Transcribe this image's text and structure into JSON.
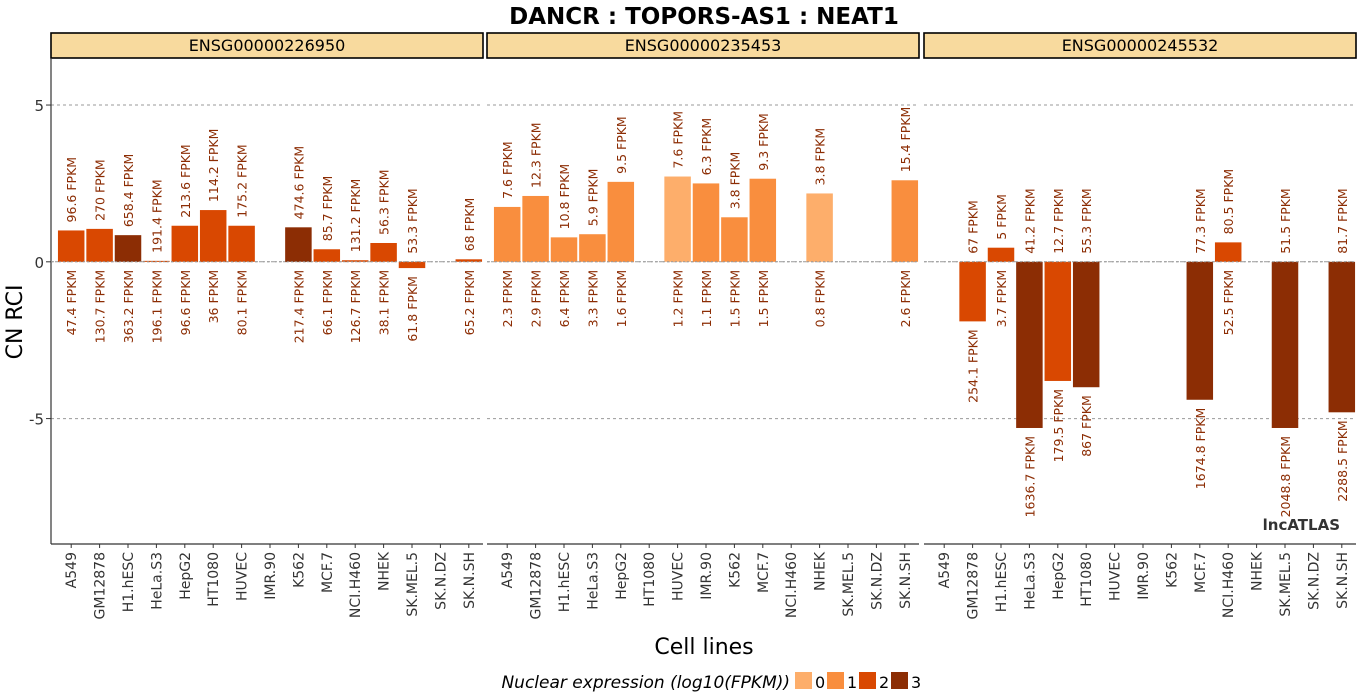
{
  "chart_data": {
    "type": "bar",
    "title": "DANCR : TOPORS-AS1 : NEAT1",
    "xlabel": "Cell lines",
    "ylabel": "CN RCI",
    "ylim": [
      -9,
      6.5
    ],
    "yticks": [
      5,
      0,
      -5
    ],
    "ytick_labels": [
      "5",
      "0",
      "-5"
    ],
    "grid": true,
    "categories": [
      "A549",
      "GM12878",
      "H1.hESC",
      "HeLa.S3",
      "HepG2",
      "HT1080",
      "HUVEC",
      "IMR.90",
      "K562",
      "MCF.7",
      "NCI.H460",
      "NHEK",
      "SK.MEL.5",
      "SK.N.DZ",
      "SK.N.SH"
    ],
    "panels": [
      {
        "name": "ENSG00000226950",
        "values": [
          1.0,
          1.05,
          0.85,
          0.03,
          1.15,
          1.65,
          1.15,
          null,
          1.1,
          0.4,
          0.05,
          0.6,
          -0.2,
          null,
          0.08
        ],
        "color_levels": [
          2,
          2,
          3,
          2,
          2,
          2,
          2,
          null,
          3,
          2,
          2,
          2,
          2,
          null,
          2
        ],
        "cyto_labels": [
          "96.6 FPKM",
          "270 FPKM",
          "658.4 FPKM",
          "191.4 FPKM",
          "213.6 FPKM",
          "114.2 FPKM",
          "175.2 FPKM",
          "",
          "474.6 FPKM",
          "85.7 FPKM",
          "131.2 FPKM",
          "56.3 FPKM",
          "53.3 FPKM",
          "",
          "68 FPKM"
        ],
        "nuc_labels": [
          "47.4 FPKM",
          "130.7 FPKM",
          "363.2 FPKM",
          "196.1 FPKM",
          "96.6 FPKM",
          "36 FPKM",
          "80.1 FPKM",
          "",
          "217.4 FPKM",
          "66.1 FPKM",
          "126.7 FPKM",
          "38.1 FPKM",
          "61.8 FPKM",
          "",
          "65.2 FPKM"
        ]
      },
      {
        "name": "ENSG00000235453",
        "values": [
          1.75,
          2.1,
          0.78,
          0.88,
          2.55,
          null,
          2.72,
          2.5,
          1.42,
          2.65,
          null,
          2.18,
          null,
          null,
          2.6
        ],
        "color_levels": [
          1,
          1,
          1,
          1,
          1,
          null,
          0,
          1,
          1,
          1,
          null,
          0,
          null,
          null,
          1
        ],
        "cyto_labels": [
          "7.6 FPKM",
          "12.3 FPKM",
          "10.8 FPKM",
          "5.9 FPKM",
          "9.5 FPKM",
          "",
          "7.6 FPKM",
          "6.3 FPKM",
          "3.8 FPKM",
          "9.3 FPKM",
          "",
          "3.8 FPKM",
          "",
          "",
          "15.4 FPKM"
        ],
        "nuc_labels": [
          "2.3 FPKM",
          "2.9 FPKM",
          "6.4 FPKM",
          "3.3 FPKM",
          "1.6 FPKM",
          "",
          "1.2 FPKM",
          "1.1 FPKM",
          "1.5 FPKM",
          "1.5 FPKM",
          "",
          "0.8 FPKM",
          "",
          "",
          "2.6 FPKM"
        ]
      },
      {
        "name": "ENSG00000245532",
        "values": [
          null,
          -1.9,
          0.45,
          -5.3,
          -3.8,
          -4.0,
          null,
          null,
          null,
          -4.4,
          0.62,
          null,
          -5.3,
          null,
          -4.8
        ],
        "color_levels": [
          null,
          2,
          2,
          3,
          2,
          3,
          null,
          null,
          null,
          3,
          2,
          null,
          3,
          null,
          3
        ],
        "cyto_labels": [
          "",
          "67 FPKM",
          "5 FPKM",
          "41.2 FPKM",
          "12.7 FPKM",
          "55.3 FPKM",
          "",
          "",
          "",
          "77.3 FPKM",
          "80.5 FPKM",
          "",
          "51.5 FPKM",
          "",
          "81.7 FPKM"
        ],
        "nuc_labels": [
          "",
          "254.1 FPKM",
          "3.7 FPKM",
          "1636.7 FPKM",
          "179.5 FPKM",
          "867 FPKM",
          "",
          "",
          "",
          "1674.8 FPKM",
          "52.5 FPKM",
          "",
          "2048.8 FPKM",
          "",
          "2288.5 FPKM"
        ]
      }
    ],
    "legend": {
      "title": "Nuclear expression (log10(FPKM))",
      "placement": "bottom",
      "items": [
        {
          "label": "0",
          "color": "#FDAE6B"
        },
        {
          "label": "1",
          "color": "#F98E3E"
        },
        {
          "label": "2",
          "color": "#D94801"
        },
        {
          "label": "3",
          "color": "#8C2D04"
        }
      ]
    },
    "watermark": "lncATLAS"
  },
  "colors": {
    "strip_fill": "#F8DA9E",
    "label_text": "#8C2D04",
    "grid": "#999999",
    "axis": "#333333"
  }
}
